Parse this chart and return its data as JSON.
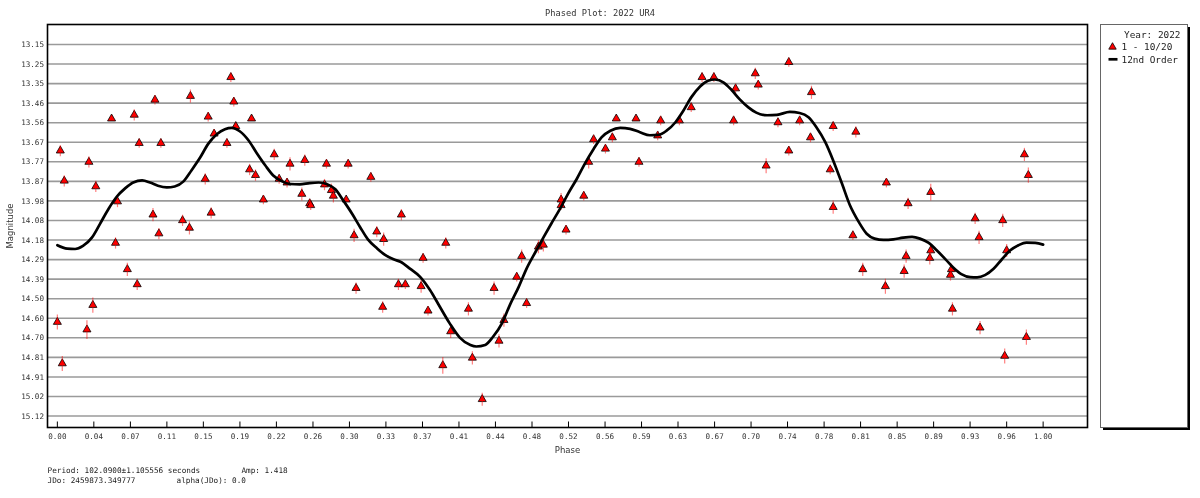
{
  "chart_data": {
    "type": "scatter",
    "title": "Phased Plot: 2022 UR4",
    "xlabel": "Phase",
    "ylabel": "Magnitude",
    "legend_title": "Year: 2022",
    "legend": "right",
    "grid": "y",
    "annotations": [
      "Period: 102.0900±1.105556 seconds",
      "Amp: 1.418",
      "JDo: 2459873.349777",
      "alpha(JDo): 0.0"
    ],
    "xlim": [
      -0.01,
      1.045
    ],
    "ylim": [
      15.18,
      13.04
    ],
    "xticks": [
      {
        "value": 0,
        "label": "0.00"
      },
      {
        "value": 0.037,
        "label": "0.04"
      },
      {
        "value": 0.0741,
        "label": "0.07"
      },
      {
        "value": 0.1111,
        "label": "0.11"
      },
      {
        "value": 0.1481,
        "label": "0.15"
      },
      {
        "value": 0.1852,
        "label": "0.19"
      },
      {
        "value": 0.2222,
        "label": "0.22"
      },
      {
        "value": 0.2593,
        "label": "0.26"
      },
      {
        "value": 0.2963,
        "label": "0.30"
      },
      {
        "value": 0.3333,
        "label": "0.33"
      },
      {
        "value": 0.3704,
        "label": "0.37"
      },
      {
        "value": 0.4074,
        "label": "0.41"
      },
      {
        "value": 0.4444,
        "label": "0.44"
      },
      {
        "value": 0.4815,
        "label": "0.48"
      },
      {
        "value": 0.5185,
        "label": "0.52"
      },
      {
        "value": 0.5556,
        "label": "0.56"
      },
      {
        "value": 0.5926,
        "label": "0.59"
      },
      {
        "value": 0.6296,
        "label": "0.63"
      },
      {
        "value": 0.6667,
        "label": "0.67"
      },
      {
        "value": 0.7037,
        "label": "0.70"
      },
      {
        "value": 0.7407,
        "label": "0.74"
      },
      {
        "value": 0.7778,
        "label": "0.78"
      },
      {
        "value": 0.8148,
        "label": "0.81"
      },
      {
        "value": 0.8519,
        "label": "0.85"
      },
      {
        "value": 0.8889,
        "label": "0.89"
      },
      {
        "value": 0.9259,
        "label": "0.93"
      },
      {
        "value": 0.963,
        "label": "0.96"
      },
      {
        "value": 1,
        "label": "1.00"
      }
    ],
    "yticks": [
      {
        "value": 13.146,
        "label": "13.15"
      },
      {
        "value": 13.2499,
        "label": "13.25"
      },
      {
        "value": 13.3537,
        "label": "13.35"
      },
      {
        "value": 13.4576,
        "label": "13.46"
      },
      {
        "value": 13.5614,
        "label": "13.56"
      },
      {
        "value": 13.6653,
        "label": "13.67"
      },
      {
        "value": 13.7691,
        "label": "13.77"
      },
      {
        "value": 13.873,
        "label": "13.87"
      },
      {
        "value": 13.9768,
        "label": "13.98"
      },
      {
        "value": 14.0807,
        "label": "14.08"
      },
      {
        "value": 14.1844,
        "label": "14.18"
      },
      {
        "value": 14.2884,
        "label": "14.29"
      },
      {
        "value": 14.3922,
        "label": "14.39"
      },
      {
        "value": 14.4961,
        "label": "14.50"
      },
      {
        "value": 14.5999,
        "label": "14.60"
      },
      {
        "value": 14.7038,
        "label": "14.70"
      },
      {
        "value": 14.8076,
        "label": "14.81"
      },
      {
        "value": 14.9115,
        "label": "14.91"
      },
      {
        "value": 15.0153,
        "label": "15.02"
      },
      {
        "value": 15.1192,
        "label": "15.12"
      }
    ],
    "series": [
      {
        "name": "1 - 10/20",
        "marker": "triangle",
        "color": "#ff0000",
        "x": [
          0.0,
          0.003,
          0.007,
          0.005,
          0.032,
          0.03,
          0.036,
          0.039,
          0.055,
          0.059,
          0.061,
          0.071,
          0.078,
          0.081,
          0.083,
          0.097,
          0.099,
          0.103,
          0.105,
          0.127,
          0.134,
          0.135,
          0.15,
          0.153,
          0.156,
          0.159,
          0.172,
          0.176,
          0.179,
          0.181,
          0.197,
          0.195,
          0.201,
          0.209,
          0.22,
          0.225,
          0.233,
          0.236,
          0.248,
          0.251,
          0.256,
          0.257,
          0.271,
          0.273,
          0.278,
          0.28,
          0.293,
          0.295,
          0.301,
          0.303,
          0.318,
          0.324,
          0.331,
          0.33,
          0.346,
          0.349,
          0.353,
          0.369,
          0.371,
          0.376,
          0.391,
          0.394,
          0.399,
          0.417,
          0.421,
          0.431,
          0.443,
          0.448,
          0.453,
          0.466,
          0.471,
          0.476,
          0.488,
          0.493,
          0.511,
          0.511,
          0.516,
          0.534,
          0.539,
          0.544,
          0.556,
          0.563,
          0.567,
          0.587,
          0.59,
          0.609,
          0.612,
          0.631,
          0.643,
          0.654,
          0.666,
          0.688,
          0.686,
          0.708,
          0.711,
          0.719,
          0.731,
          0.742,
          0.742,
          0.753,
          0.765,
          0.764,
          0.787,
          0.784,
          0.787,
          0.81,
          0.807,
          0.817,
          0.841,
          0.84,
          0.859,
          0.861,
          0.863,
          0.886,
          0.886,
          0.885,
          0.906,
          0.907,
          0.908,
          0.931,
          0.935,
          0.936,
          0.959,
          0.961,
          0.963,
          0.981,
          0.985,
          0.983
        ],
        "values": [
          14.62,
          13.71,
          13.87,
          14.84,
          13.77,
          14.66,
          14.53,
          13.9,
          13.54,
          14.2,
          13.98,
          14.34,
          13.52,
          14.42,
          13.67,
          14.05,
          13.44,
          14.15,
          13.67,
          14.08,
          14.12,
          13.42,
          13.86,
          13.53,
          14.04,
          13.62,
          13.67,
          13.32,
          13.45,
          13.58,
          13.54,
          13.81,
          13.84,
          13.97,
          13.73,
          13.86,
          13.88,
          13.78,
          13.94,
          13.76,
          13.99,
          14.0,
          13.89,
          13.78,
          13.92,
          13.95,
          13.97,
          13.78,
          14.16,
          14.44,
          13.85,
          14.14,
          14.18,
          14.54,
          14.42,
          14.05,
          14.42,
          14.43,
          14.28,
          14.56,
          14.85,
          14.2,
          14.67,
          14.55,
          14.81,
          15.03,
          14.44,
          14.72,
          14.61,
          14.38,
          14.27,
          14.52,
          14.22,
          14.21,
          14.0,
          13.97,
          14.13,
          13.95,
          13.77,
          13.65,
          13.7,
          13.64,
          13.54,
          13.54,
          13.77,
          13.63,
          13.55,
          13.55,
          13.48,
          13.32,
          13.32,
          13.38,
          13.55,
          13.3,
          13.36,
          13.79,
          13.56,
          13.24,
          13.71,
          13.55,
          13.4,
          13.64,
          13.58,
          13.81,
          14.01,
          13.61,
          14.16,
          14.34,
          13.88,
          14.43,
          14.35,
          14.27,
          13.99,
          13.93,
          14.24,
          14.28,
          14.37,
          14.34,
          14.55,
          14.07,
          14.17,
          14.65,
          14.08,
          14.8,
          14.24,
          13.73,
          13.84,
          14.7
        ],
        "errors": [
          0.04,
          0.03,
          0.03,
          0.04,
          0.03,
          0.05,
          0.04,
          0.03,
          null,
          0.03,
          0.03,
          0.035,
          0.03,
          0.03,
          0.025,
          0.035,
          0.025,
          0.03,
          0.025,
          0.03,
          0.035,
          0.035,
          0.03,
          0.025,
          0.03,
          0.025,
          0.025,
          0.025,
          0.025,
          null,
          null,
          0.03,
          0.03,
          0.025,
          0.03,
          0.025,
          0.025,
          0.035,
          0.035,
          0.03,
          0.025,
          0.025,
          0.03,
          0.025,
          0.035,
          0.035,
          null,
          0.025,
          0.035,
          0.03,
          0.025,
          0.03,
          0.035,
          0.03,
          0.03,
          0.03,
          0.025,
          0.035,
          0.025,
          0.025,
          0.045,
          0.03,
          0.035,
          0.035,
          0.035,
          0.035,
          0.035,
          0.035,
          0.035,
          0.025,
          0.035,
          0.025,
          0.035,
          0.035,
          0.025,
          0.035,
          0.025,
          0.025,
          0.035,
          0.025,
          0.025,
          0.025,
          null,
          null,
          0.025,
          0.025,
          0.025,
          0.025,
          0.025,
          0.025,
          0.025,
          0.025,
          0.025,
          0.03,
          0.025,
          0.04,
          0.025,
          0.025,
          0.025,
          0.025,
          0.035,
          0.025,
          0.025,
          0.025,
          0.035,
          0.03,
          0.025,
          0.035,
          0.025,
          0.04,
          0.035,
          0.035,
          0.03,
          0.045,
          0.035,
          0.035,
          0.03,
          0.03,
          0.035,
          0.03,
          0.035,
          0.035,
          0.035,
          0.04,
          0.035,
          0.035,
          0.04,
          0.04
        ]
      },
      {
        "name": "12nd Order",
        "type": "line",
        "color": "#000000",
        "x": [
          0.0,
          0.01,
          0.018,
          0.026,
          0.035,
          0.043,
          0.052,
          0.06,
          0.069,
          0.077,
          0.086,
          0.094,
          0.102,
          0.111,
          0.119,
          0.128,
          0.136,
          0.145,
          0.153,
          0.162,
          0.17,
          0.177,
          0.185,
          0.194,
          0.202,
          0.211,
          0.219,
          0.228,
          0.236,
          0.246,
          0.256,
          0.265,
          0.273,
          0.282,
          0.29,
          0.299,
          0.307,
          0.315,
          0.324,
          0.332,
          0.341,
          0.348,
          0.358,
          0.368,
          0.378,
          0.388,
          0.398,
          0.408,
          0.419,
          0.425,
          0.434,
          0.442,
          0.451,
          0.459,
          0.468,
          0.476,
          0.485,
          0.493,
          0.501,
          0.51,
          0.518,
          0.527,
          0.535,
          0.544,
          0.552,
          0.561,
          0.571,
          0.581,
          0.591,
          0.601,
          0.61,
          0.618,
          0.627,
          0.635,
          0.643,
          0.652,
          0.66,
          0.667,
          0.676,
          0.684,
          0.692,
          0.701,
          0.709,
          0.72,
          0.73,
          0.743,
          0.753,
          0.762,
          0.77,
          0.779,
          0.787,
          0.796,
          0.804,
          0.813,
          0.821,
          0.829,
          0.838,
          0.848,
          0.858,
          0.867,
          0.875,
          0.884,
          0.892,
          0.901,
          0.909,
          0.917,
          0.926,
          0.933,
          0.941,
          0.95,
          0.958,
          0.966,
          0.975,
          0.983,
          0.992,
          1.0
        ],
        "values": [
          14.212,
          14.23,
          14.232,
          14.216,
          14.172,
          14.101,
          14.018,
          13.956,
          13.909,
          13.879,
          13.868,
          13.879,
          13.896,
          13.905,
          13.9,
          13.873,
          13.815,
          13.745,
          13.674,
          13.621,
          13.596,
          13.589,
          13.607,
          13.656,
          13.721,
          13.789,
          13.842,
          13.873,
          13.887,
          13.889,
          13.882,
          13.879,
          13.887,
          13.915,
          13.974,
          14.045,
          14.115,
          14.181,
          14.227,
          14.262,
          14.287,
          14.3,
          14.338,
          14.38,
          14.45,
          14.539,
          14.627,
          14.701,
          14.742,
          14.75,
          14.742,
          14.698,
          14.627,
          14.53,
          14.433,
          14.336,
          14.248,
          14.172,
          14.098,
          14.018,
          13.939,
          13.859,
          13.78,
          13.701,
          13.639,
          13.604,
          13.589,
          13.594,
          13.612,
          13.628,
          13.626,
          13.604,
          13.559,
          13.498,
          13.427,
          13.369,
          13.339,
          13.332,
          13.348,
          13.388,
          13.436,
          13.48,
          13.508,
          13.522,
          13.52,
          13.504,
          13.51,
          13.533,
          13.586,
          13.665,
          13.762,
          13.886,
          14.0,
          14.089,
          14.151,
          14.177,
          14.184,
          14.181,
          14.172,
          14.168,
          14.177,
          14.2,
          14.239,
          14.287,
          14.332,
          14.366,
          14.382,
          14.383,
          14.371,
          14.336,
          14.288,
          14.242,
          14.212,
          14.198,
          14.2,
          14.209
        ]
      }
    ]
  }
}
